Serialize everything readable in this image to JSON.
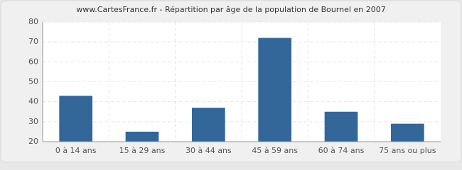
{
  "chart_data": {
    "type": "bar",
    "title": "www.CartesFrance.fr - Répartition par âge de la population de Bournel en 2007",
    "categories": [
      "0 à 14 ans",
      "15 à 29 ans",
      "30 à 44 ans",
      "45 à 59 ans",
      "60 à 74 ans",
      "75 ans ou plus"
    ],
    "values": [
      43,
      25,
      37,
      72,
      35,
      29
    ],
    "color": "#336699",
    "ylim": [
      20,
      80
    ],
    "yticks": [
      20,
      30,
      40,
      50,
      60,
      70,
      80
    ],
    "grid": true
  }
}
